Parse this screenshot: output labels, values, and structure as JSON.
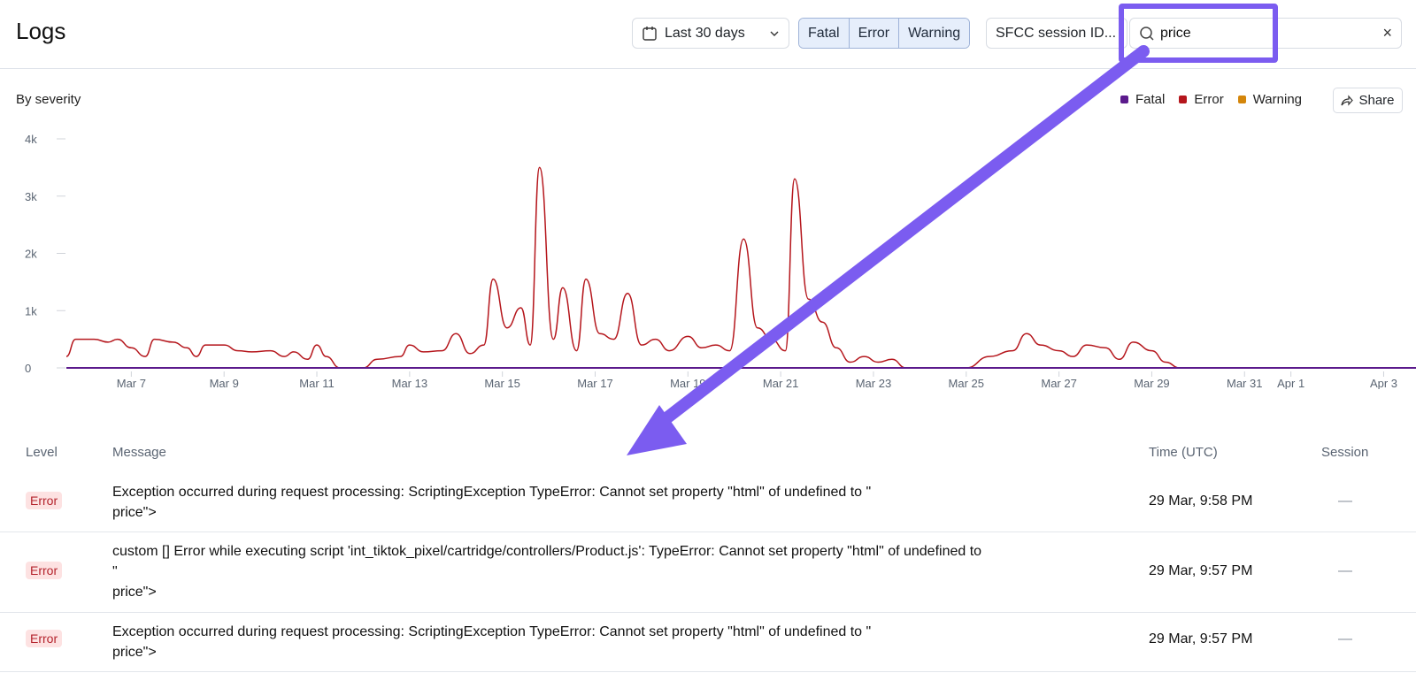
{
  "header": {
    "title": "Logs",
    "date_range": "Last 30 days",
    "severity_buttons": [
      "Fatal",
      "Error",
      "Warning"
    ],
    "session_field": "SFCC session ID...",
    "search_value": "price",
    "clear_label": "×"
  },
  "chart_section": {
    "heading": "By severity",
    "share_label": "Share",
    "legend": [
      {
        "label": "Fatal",
        "color": "#5b1a8c"
      },
      {
        "label": "Error",
        "color": "#b5161c"
      },
      {
        "label": "Warning",
        "color": "#d4860b"
      }
    ]
  },
  "chart_data": {
    "type": "line",
    "title": "By severity",
    "ylim": [
      0,
      4000
    ],
    "y_ticks": [
      "0",
      "1k",
      "2k",
      "3k",
      "4k"
    ],
    "x_ticks": [
      "Mar 7",
      "Mar 9",
      "Mar 11",
      "Mar 13",
      "Mar 15",
      "Mar 17",
      "Mar 19",
      "Mar 21",
      "Mar 23",
      "Mar 25",
      "Mar 27",
      "Mar 29",
      "Mar 31",
      "Apr 1",
      "Apr 3"
    ],
    "series": [
      {
        "name": "Error",
        "color": "#b5161c",
        "points": [
          [
            "Mar 5.6",
            200
          ],
          [
            "Mar 5.8",
            500
          ],
          [
            "Mar 6.2",
            500
          ],
          [
            "Mar 6.5",
            450
          ],
          [
            "Mar 6.7",
            500
          ],
          [
            "Mar 7.0",
            350
          ],
          [
            "Mar 7.3",
            200
          ],
          [
            "Mar 7.5",
            500
          ],
          [
            "Mar 7.9",
            450
          ],
          [
            "Mar 8.2",
            350
          ],
          [
            "Mar 8.4",
            200
          ],
          [
            "Mar 8.6",
            400
          ],
          [
            "Mar 9.0",
            400
          ],
          [
            "Mar 9.3",
            300
          ],
          [
            "Mar 9.6",
            280
          ],
          [
            "Mar 10.0",
            300
          ],
          [
            "Mar 10.3",
            200
          ],
          [
            "Mar 10.5",
            280
          ],
          [
            "Mar 10.8",
            150
          ],
          [
            "Mar 11.0",
            400
          ],
          [
            "Mar 11.2",
            200
          ],
          [
            "Mar 11.5",
            0
          ],
          [
            "Mar 12.0",
            0
          ],
          [
            "Mar 12.3",
            150
          ],
          [
            "Mar 12.8",
            200
          ],
          [
            "Mar 13.0",
            400
          ],
          [
            "Mar 13.3",
            280
          ],
          [
            "Mar 13.7",
            300
          ],
          [
            "Mar 14.0",
            600
          ],
          [
            "Mar 14.3",
            250
          ],
          [
            "Mar 14.6",
            400
          ],
          [
            "Mar 14.8",
            1550
          ],
          [
            "Mar 15.1",
            700
          ],
          [
            "Mar 15.4",
            1050
          ],
          [
            "Mar 15.6",
            400
          ],
          [
            "Mar 15.8",
            3500
          ],
          [
            "Mar 16.1",
            500
          ],
          [
            "Mar 16.3",
            1400
          ],
          [
            "Mar 16.6",
            300
          ],
          [
            "Mar 16.8",
            1550
          ],
          [
            "Mar 17.1",
            600
          ],
          [
            "Mar 17.4",
            500
          ],
          [
            "Mar 17.7",
            1300
          ],
          [
            "Mar 18.0",
            400
          ],
          [
            "Mar 18.3",
            500
          ],
          [
            "Mar 18.6",
            300
          ],
          [
            "Mar 19.0",
            550
          ],
          [
            "Mar 19.3",
            350
          ],
          [
            "Mar 19.6",
            400
          ],
          [
            "Mar 19.9",
            300
          ],
          [
            "Mar 20.2",
            2250
          ],
          [
            "Mar 20.5",
            700
          ],
          [
            "Mar 20.8",
            500
          ],
          [
            "Mar 21.1",
            300
          ],
          [
            "Mar 21.3",
            3300
          ],
          [
            "Mar 21.6",
            1200
          ],
          [
            "Mar 21.9",
            800
          ],
          [
            "Mar 22.2",
            350
          ],
          [
            "Mar 22.5",
            100
          ],
          [
            "Mar 22.8",
            200
          ],
          [
            "Mar 23.1",
            100
          ],
          [
            "Mar 23.4",
            150
          ],
          [
            "Mar 23.7",
            0
          ],
          [
            "Mar 25.0",
            0
          ],
          [
            "Mar 25.5",
            200
          ],
          [
            "Mar 26.0",
            300
          ],
          [
            "Mar 26.3",
            600
          ],
          [
            "Mar 26.6",
            400
          ],
          [
            "Mar 27.0",
            300
          ],
          [
            "Mar 27.3",
            200
          ],
          [
            "Mar 27.6",
            400
          ],
          [
            "Mar 28.0",
            350
          ],
          [
            "Mar 28.3",
            150
          ],
          [
            "Mar 28.6",
            450
          ],
          [
            "Mar 29.0",
            300
          ],
          [
            "Mar 29.3",
            100
          ],
          [
            "Mar 29.6",
            0
          ],
          [
            "Apr 3.8",
            0
          ]
        ]
      },
      {
        "name": "Fatal",
        "color": "#5b1a8c",
        "points": [
          [
            "Mar 5.6",
            0
          ],
          [
            "Apr 3.8",
            0
          ]
        ]
      }
    ]
  },
  "table": {
    "columns": [
      "Level",
      "Message",
      "Time (UTC)",
      "Session"
    ],
    "rows": [
      {
        "level": "Error",
        "message_line1": "Exception occurred during request processing: ScriptingException TypeError: Cannot set property \"html\" of undefined to \"",
        "message_line2": "price\">",
        "message_line3": "",
        "time": "29 Mar, 9:58 PM",
        "session": "—"
      },
      {
        "level": "Error",
        "message_line1": "custom [] Error while executing script 'int_tiktok_pixel/cartridge/controllers/Product.js': TypeError: Cannot set property \"html\" of undefined to",
        "message_line2": "\"",
        "message_line3": "price\">",
        "time": "29 Mar, 9:57 PM",
        "session": "—"
      },
      {
        "level": "Error",
        "message_line1": "Exception occurred during request processing: ScriptingException TypeError: Cannot set property \"html\" of undefined to \"",
        "message_line2": "price\">",
        "message_line3": "",
        "time": "29 Mar, 9:57 PM",
        "session": "—"
      }
    ]
  }
}
